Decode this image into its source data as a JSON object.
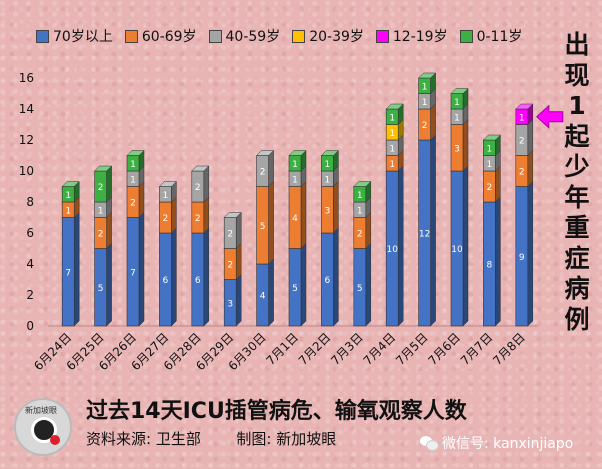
{
  "colors": {
    "70+": "#4472c4",
    "60-69": "#ed7d31",
    "40-59": "#a5a5a5",
    "20-39": "#ffc000",
    "12-19": "#ff00ff",
    "0-11": "#3cb043",
    "arrow": "#ff00ff"
  },
  "legend": [
    {
      "key": "70+",
      "label": "70岁以上"
    },
    {
      "key": "60-69",
      "label": "60-69岁"
    },
    {
      "key": "40-59",
      "label": "40-59岁"
    },
    {
      "key": "20-39",
      "label": "20-39岁"
    },
    {
      "key": "12-19",
      "label": "12-19岁"
    },
    {
      "key": "0-11",
      "label": "0-11岁"
    }
  ],
  "side_note": [
    "出",
    "现",
    "1",
    "起",
    "少",
    "年",
    "重",
    "症",
    "病",
    "例"
  ],
  "footer": {
    "title": "过去14天ICU插管病危、输氧观察人数",
    "source_label": "资料来源:",
    "source_value": "卫生部",
    "credit_label": "制图:",
    "credit_value": "新加坡眼",
    "wechat": "微信号: kanxinjiapo",
    "logo_text": "新加坡眼"
  },
  "chart_data": {
    "type": "bar",
    "stacked": true,
    "title": "过去14天ICU插管病危、输氧观察人数",
    "ylim": [
      0,
      16
    ],
    "yticks": [
      0,
      2,
      4,
      6,
      8,
      10,
      12,
      14,
      16
    ],
    "categories": [
      "6月24日",
      "6月25日",
      "6月26日",
      "6月27日",
      "6月28日",
      "6月29日",
      "6月30日",
      "7月1日",
      "7月2日",
      "7月3日",
      "7月4日",
      "7月5日",
      "7月6日",
      "7月7日",
      "7月8日"
    ],
    "series": [
      {
        "key": "70+",
        "name": "70岁以上",
        "values": [
          7,
          5,
          7,
          6,
          6,
          3,
          4,
          5,
          6,
          5,
          10,
          12,
          10,
          8,
          9
        ]
      },
      {
        "key": "60-69",
        "name": "60-69岁",
        "values": [
          1,
          2,
          2,
          2,
          2,
          2,
          5,
          4,
          3,
          2,
          1,
          2,
          3,
          2,
          2
        ]
      },
      {
        "key": "40-59",
        "name": "40-59岁",
        "values": [
          0,
          1,
          1,
          1,
          2,
          2,
          2,
          1,
          1,
          1,
          1,
          1,
          1,
          1,
          2
        ]
      },
      {
        "key": "20-39",
        "name": "20-39岁",
        "values": [
          0,
          0,
          0,
          0,
          0,
          0,
          0,
          0,
          0,
          0,
          1,
          0,
          0,
          0,
          0
        ]
      },
      {
        "key": "12-19",
        "name": "12-19岁",
        "values": [
          0,
          0,
          0,
          0,
          0,
          0,
          0,
          0,
          0,
          0,
          0,
          0,
          0,
          0,
          1
        ]
      },
      {
        "key": "0-11",
        "name": "0-11岁",
        "values": [
          1,
          2,
          1,
          0,
          0,
          0,
          0,
          1,
          1,
          1,
          1,
          1,
          1,
          1,
          0
        ]
      }
    ],
    "annotation": {
      "category": "7月8日",
      "series": "12-19",
      "text": "出现1起少年重症病例"
    }
  }
}
